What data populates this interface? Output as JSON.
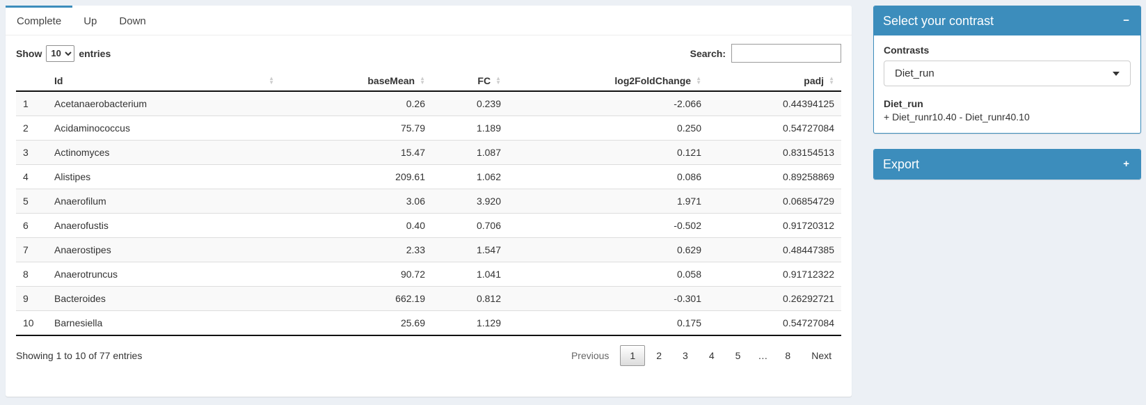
{
  "colors": {
    "primary": "#3c8dbc",
    "page_bg": "#ecf0f5"
  },
  "icons": {
    "sort_up": "▲",
    "sort_down": "▼"
  },
  "tabs": [
    {
      "label": "Complete",
      "active": true
    },
    {
      "label": "Up",
      "active": false
    },
    {
      "label": "Down",
      "active": false
    }
  ],
  "table_controls": {
    "show_label": "Show",
    "entries_value": "10",
    "entries_suffix": "entries",
    "search_label": "Search:",
    "search_value": ""
  },
  "table": {
    "columns": [
      {
        "label": ""
      },
      {
        "label": "Id"
      },
      {
        "label": "baseMean"
      },
      {
        "label": "FC"
      },
      {
        "label": "log2FoldChange"
      },
      {
        "label": "padj"
      }
    ],
    "rows": [
      {
        "num": "1",
        "id": "Acetanaerobacterium",
        "baseMean": "0.26",
        "fc": "0.239",
        "log2fc": "-2.066",
        "padj": "0.44394125"
      },
      {
        "num": "2",
        "id": "Acidaminococcus",
        "baseMean": "75.79",
        "fc": "1.189",
        "log2fc": "0.250",
        "padj": "0.54727084"
      },
      {
        "num": "3",
        "id": "Actinomyces",
        "baseMean": "15.47",
        "fc": "1.087",
        "log2fc": "0.121",
        "padj": "0.83154513"
      },
      {
        "num": "4",
        "id": "Alistipes",
        "baseMean": "209.61",
        "fc": "1.062",
        "log2fc": "0.086",
        "padj": "0.89258869"
      },
      {
        "num": "5",
        "id": "Anaerofilum",
        "baseMean": "3.06",
        "fc": "3.920",
        "log2fc": "1.971",
        "padj": "0.06854729"
      },
      {
        "num": "6",
        "id": "Anaerofustis",
        "baseMean": "0.40",
        "fc": "0.706",
        "log2fc": "-0.502",
        "padj": "0.91720312"
      },
      {
        "num": "7",
        "id": "Anaerostipes",
        "baseMean": "2.33",
        "fc": "1.547",
        "log2fc": "0.629",
        "padj": "0.48447385"
      },
      {
        "num": "8",
        "id": "Anaerotruncus",
        "baseMean": "90.72",
        "fc": "1.041",
        "log2fc": "0.058",
        "padj": "0.91712322"
      },
      {
        "num": "9",
        "id": "Bacteroides",
        "baseMean": "662.19",
        "fc": "0.812",
        "log2fc": "-0.301",
        "padj": "0.26292721"
      },
      {
        "num": "10",
        "id": "Barnesiella",
        "baseMean": "25.69",
        "fc": "1.129",
        "log2fc": "0.175",
        "padj": "0.54727084"
      }
    ],
    "info": "Showing 1 to 10 of 77 entries",
    "pagination": [
      {
        "label": "Previous",
        "state": "disabled"
      },
      {
        "label": "1",
        "state": "active"
      },
      {
        "label": "2",
        "state": "normal"
      },
      {
        "label": "3",
        "state": "normal"
      },
      {
        "label": "4",
        "state": "normal"
      },
      {
        "label": "5",
        "state": "normal"
      },
      {
        "label": "…",
        "state": "ellipsis"
      },
      {
        "label": "8",
        "state": "normal"
      },
      {
        "label": "Next",
        "state": "normal"
      }
    ]
  },
  "contrast_panel": {
    "title": "Select your contrast",
    "collapse_icon": "−",
    "contrasts_label": "Contrasts",
    "selected_contrast": "Diet_run",
    "detail_title": "Diet_run",
    "detail_formula": "+ Diet_runr10.40 - Diet_runr40.10"
  },
  "export_panel": {
    "title": "Export",
    "collapse_icon": "+"
  }
}
